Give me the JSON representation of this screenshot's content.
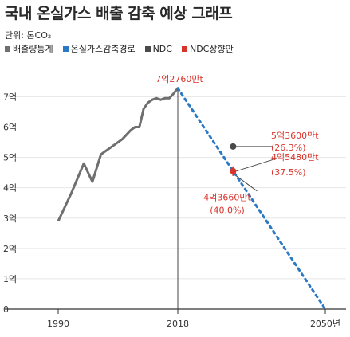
{
  "chart_data": {
    "type": "line",
    "title": "국내 온실가스 배출 감축 예상 그래프",
    "unit_label": "단위: 톤CO₂",
    "legend": [
      {
        "name": "배출량통계",
        "color": "#6f6f6f"
      },
      {
        "name": "온실가스감축경로",
        "color": "#2b78c5"
      },
      {
        "name": "NDC",
        "color": "#4a4a4a"
      },
      {
        "name": "NDC상향안",
        "color": "#d9342b"
      }
    ],
    "x_ticks": [
      "1990",
      "2018",
      "2050년"
    ],
    "y_ticks": [
      "0",
      "1억",
      "2억",
      "3억",
      "4억",
      "5억",
      "6억",
      "7억"
    ],
    "xlim": [
      1990,
      2050
    ],
    "ylim": [
      0,
      7.3
    ],
    "series": [
      {
        "name": "배출량통계",
        "color": "#6f6f6f",
        "x": [
          1990,
          1993,
          1996,
          1998,
          2000,
          2002,
          2005,
          2007,
          2008,
          2009,
          2010,
          2011,
          2012,
          2013,
          2014,
          2015,
          2016,
          2017,
          2018
        ],
        "y": [
          2.9,
          3.8,
          4.8,
          4.2,
          5.1,
          5.3,
          5.6,
          5.9,
          6.0,
          6.0,
          6.6,
          6.8,
          6.9,
          6.95,
          6.9,
          6.95,
          6.95,
          7.1,
          7.28
        ]
      },
      {
        "name": "온실가스감축경로",
        "color": "#2b78c5",
        "x": [
          2018,
          2050
        ],
        "y": [
          7.28,
          0
        ]
      }
    ],
    "points": [
      {
        "name": "NDC",
        "x": 2030,
        "y": 5.36,
        "color": "#4a4a4a"
      },
      {
        "name": "NDC상향안",
        "x": 2030,
        "y": 4.548,
        "color": "#d9342b"
      },
      {
        "name": "2030",
        "x": 2030,
        "y": 4.366,
        "color": "#2b78c5"
      }
    ],
    "annotations": [
      {
        "text": "7억2760만t",
        "x": 2018,
        "y": 7.28,
        "color": "#d9342b"
      },
      {
        "text": "5억3600만t",
        "sub": "(26.3%)",
        "x": 2030,
        "y": 5.36,
        "color": "#d9342b"
      },
      {
        "text": "4억5480만t",
        "sub": "(37.5%)",
        "x": 2030,
        "y": 4.548,
        "color": "#d9342b"
      },
      {
        "text": "4억3660만t",
        "sub": "(40.0%)",
        "x": 2030,
        "y": 4.366,
        "color": "#d9342b"
      }
    ]
  }
}
